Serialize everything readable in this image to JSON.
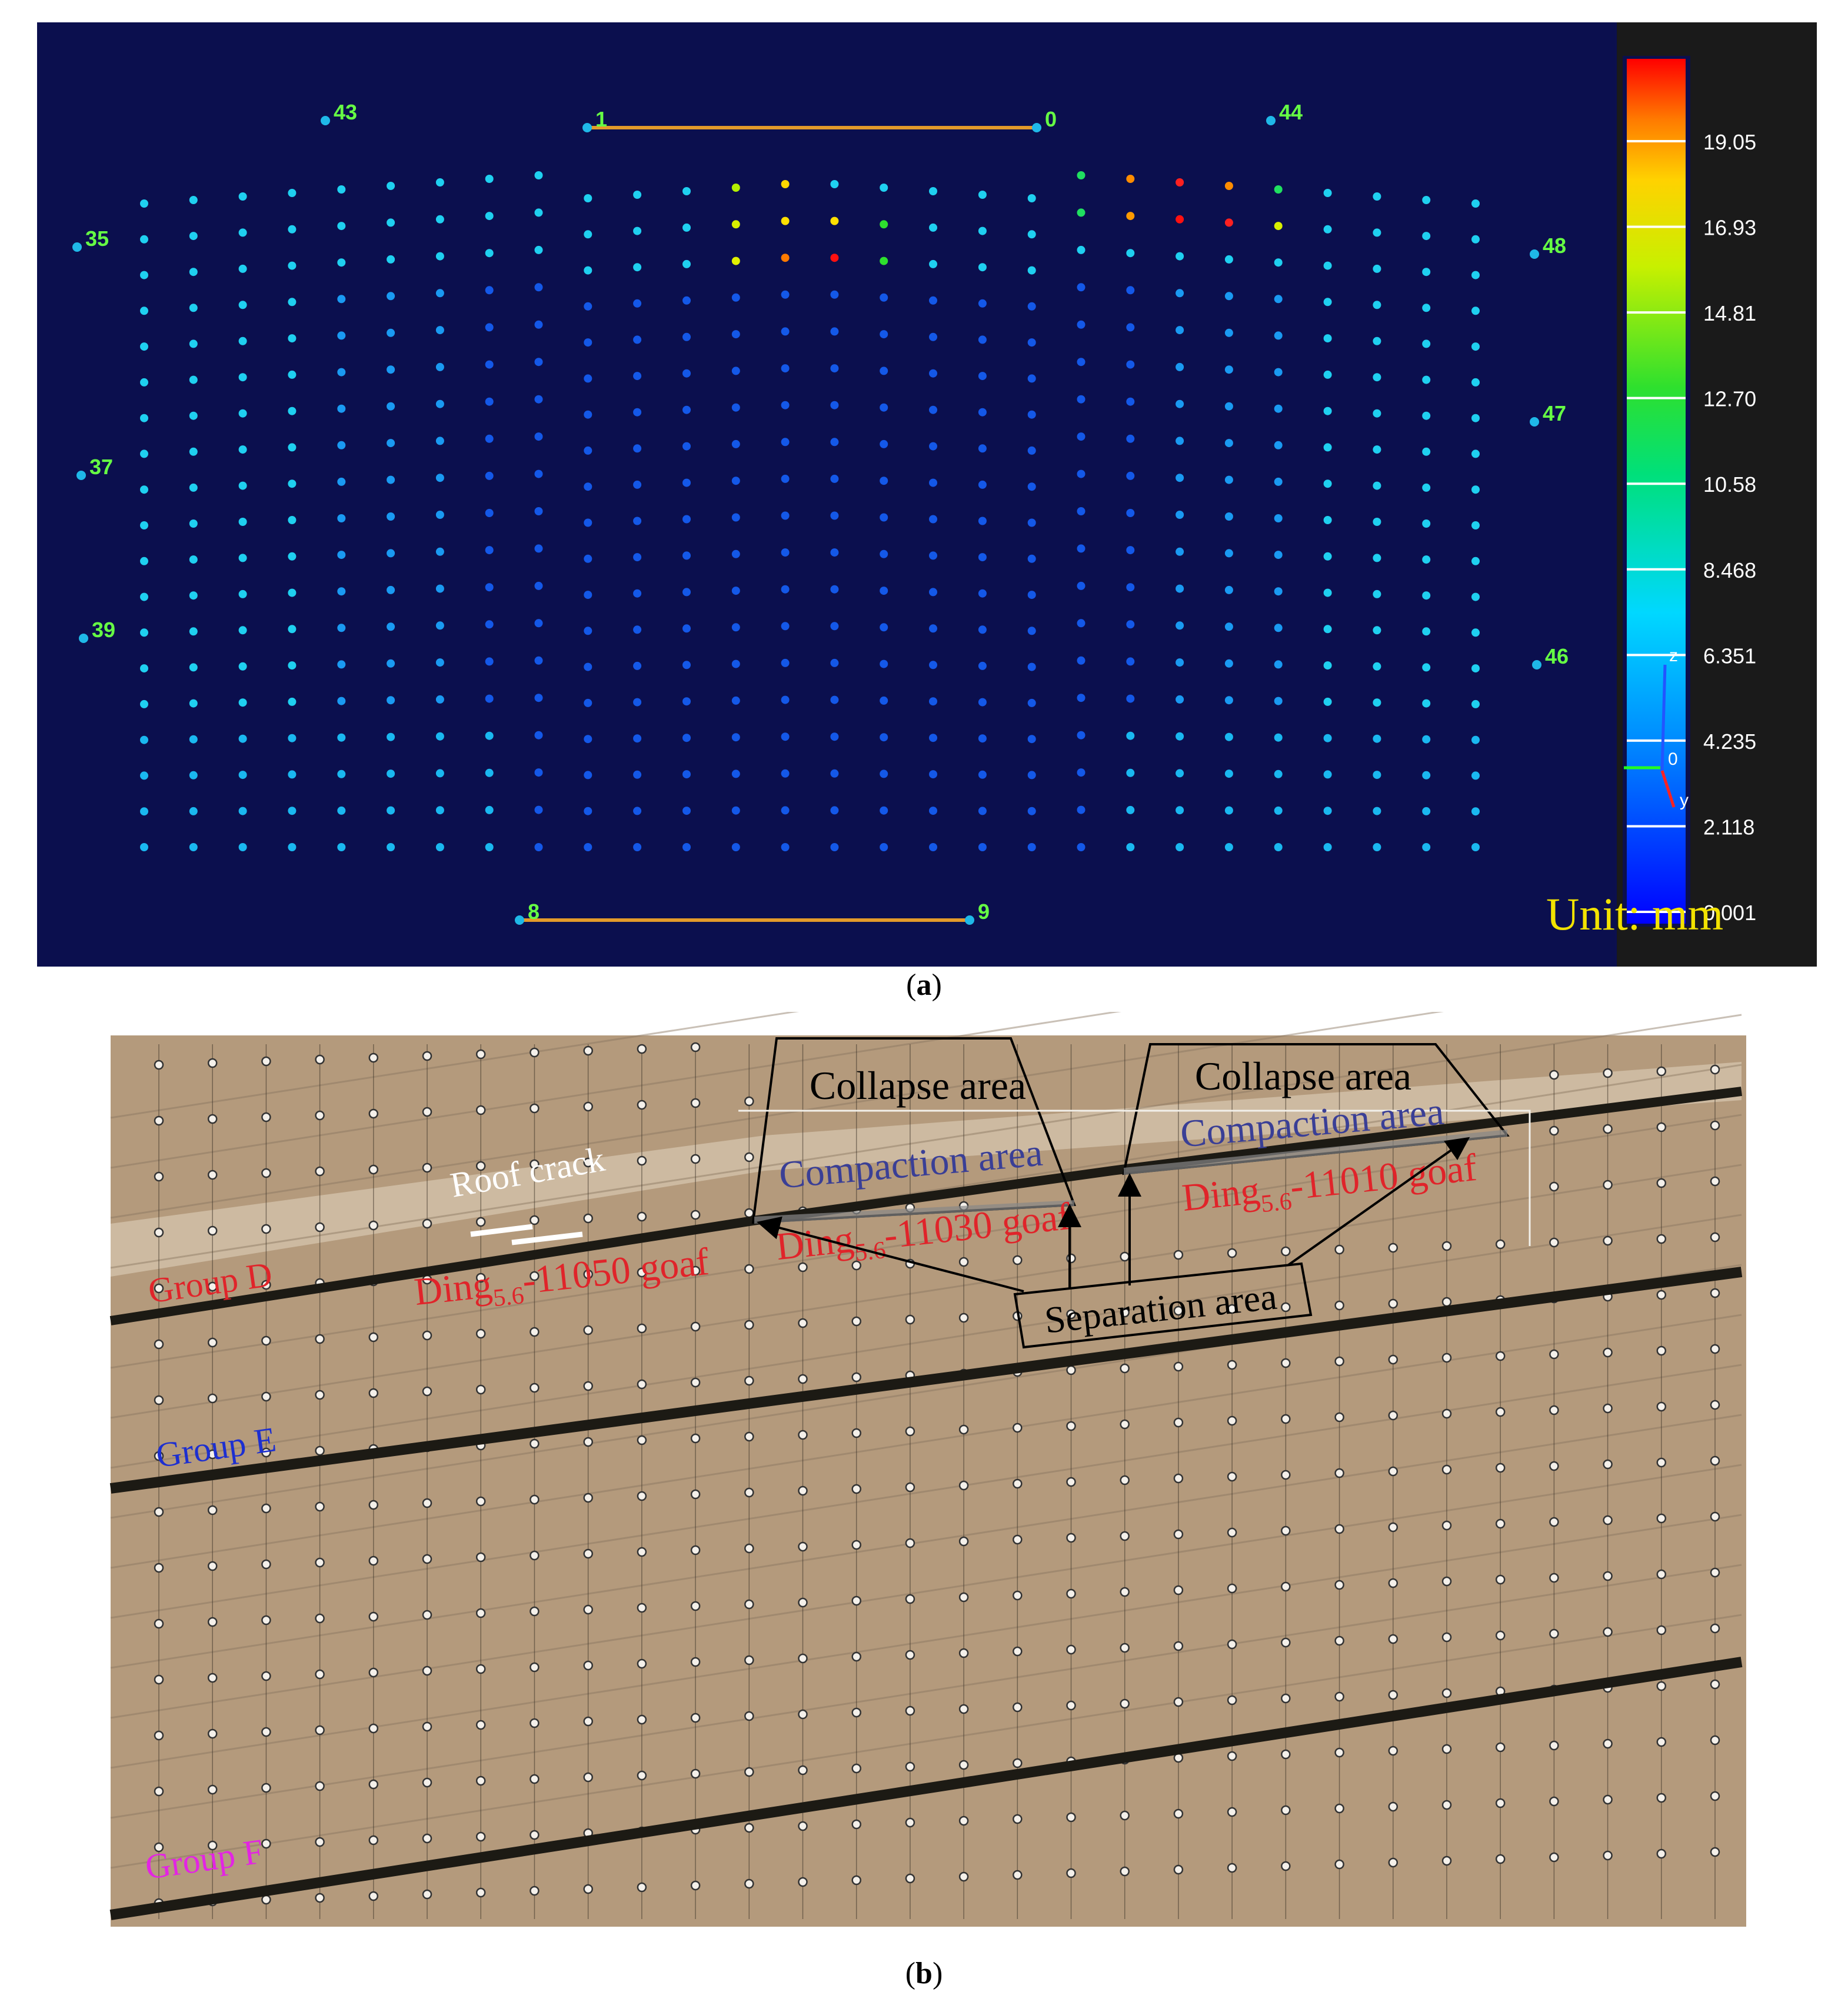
{
  "panel_a": {
    "caption_letter": "a",
    "colorbar_ticks": [
      "19.05",
      "16.93",
      "14.81",
      "12.70",
      "10.58",
      "8.468",
      "6.351",
      "4.235",
      "2.118",
      "0.001"
    ],
    "unit_label": "Unit: mm",
    "point_labels": [
      "43",
      "1",
      "0",
      "44",
      "35",
      "48",
      "47",
      "37",
      "39",
      "46",
      "8",
      "9"
    ],
    "axis_labels": {
      "z": "z",
      "origin": "0",
      "y": "y"
    },
    "colors": {
      "background": "#0b0f4e",
      "colorbar_panel": "#1a1a1a",
      "label_green": "#66ff44",
      "measure_line": "#e39a2a",
      "unit_yellow": "#f2e200"
    }
  },
  "panel_b": {
    "caption_letter": "b",
    "group_labels": [
      {
        "text": "Group D",
        "color": "#e0242a"
      },
      {
        "text": "Group E",
        "color": "#1d2fd0"
      },
      {
        "text": "Group F",
        "color": "#e324e3"
      }
    ],
    "roof_crack": "Roof crack",
    "collapse_area": "Collapse area",
    "compaction_area": "Compaction area",
    "separation_area": "Separation area",
    "goaf_labels": [
      {
        "prefix": "Ding",
        "sub": "5.6",
        "suffix": "-11050 goaf"
      },
      {
        "prefix": "Ding",
        "sub": "5.6",
        "suffix": "-11030 goaf"
      },
      {
        "prefix": "Ding",
        "sub": "5.6",
        "suffix": "-11010 goaf"
      }
    ],
    "colors": {
      "model_base": "#b49a7c",
      "coal_seam": "#1c1a14",
      "goaf_red": "#e0242a",
      "compaction_blue": "#3a3f96"
    }
  }
}
